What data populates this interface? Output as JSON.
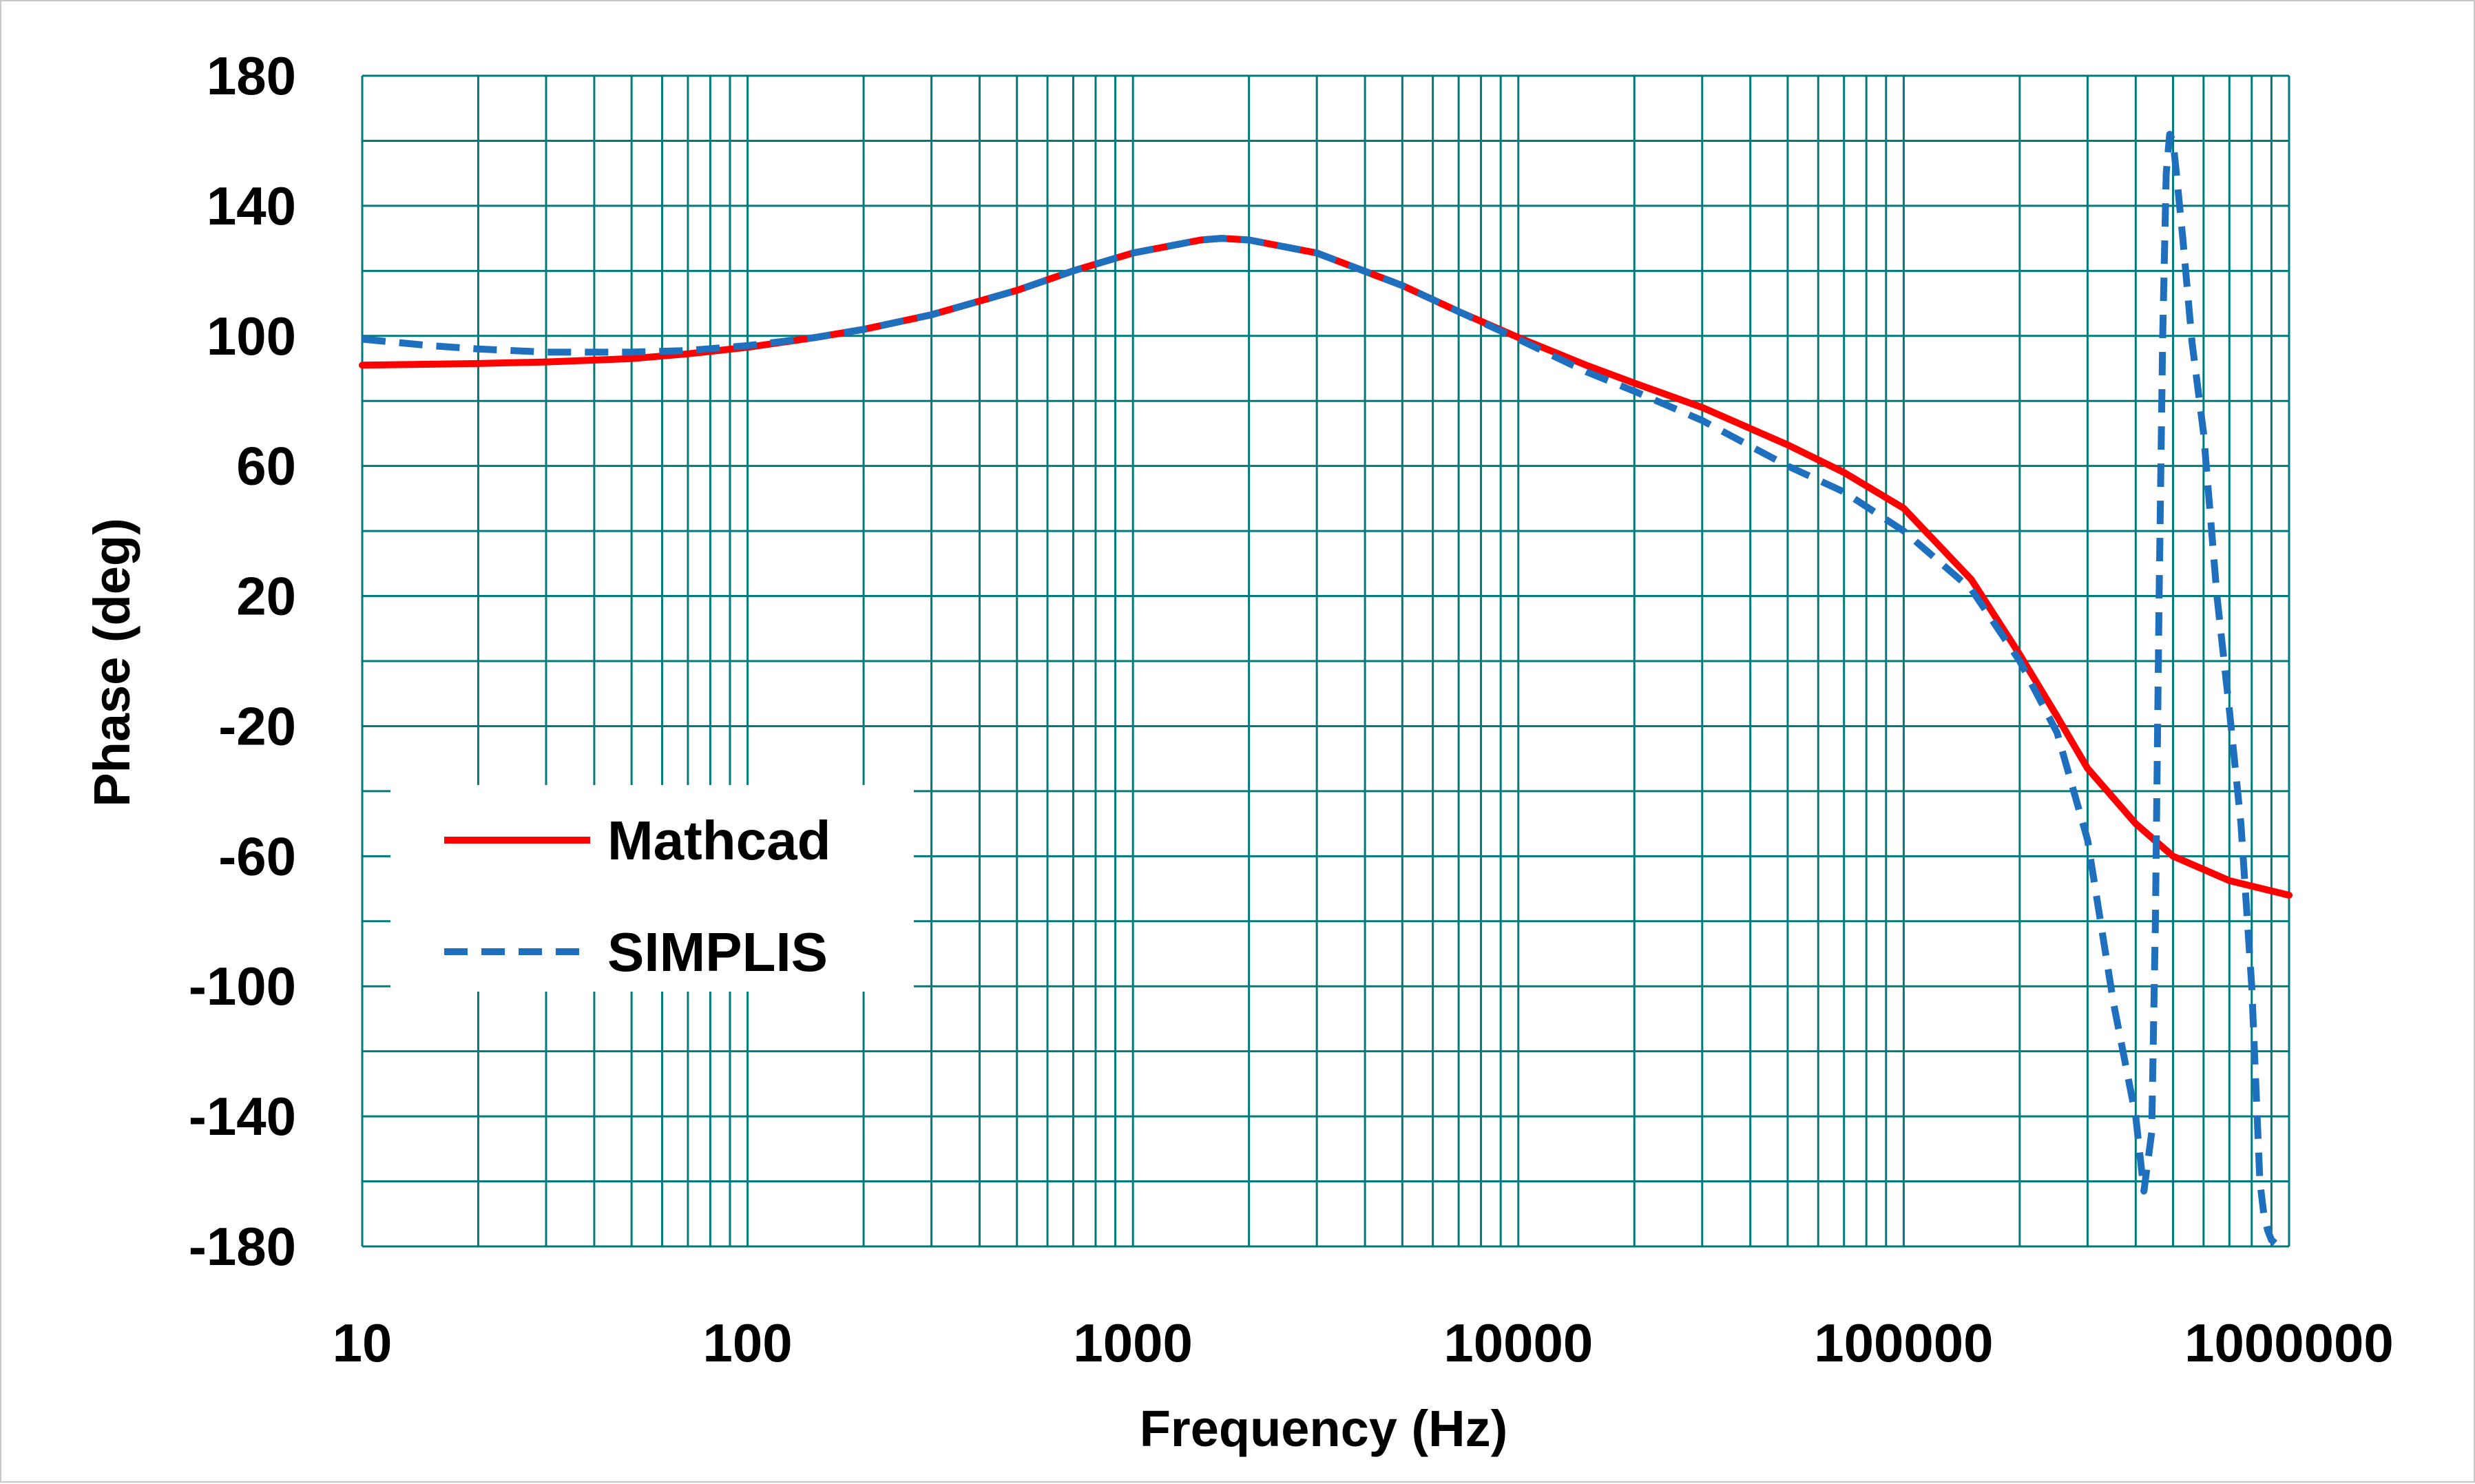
{
  "chart_data": {
    "type": "line",
    "title": "",
    "xlabel": "Frequency (Hz)",
    "ylabel": "Phase (deg)",
    "x_scale": "log",
    "xlim": [
      10,
      1000000
    ],
    "ylim": [
      -180,
      180
    ],
    "x_ticks": [
      10,
      100,
      1000,
      10000,
      100000,
      1000000
    ],
    "x_tick_labels": [
      "10",
      "100",
      "1000",
      "10000",
      "100000",
      "1000000"
    ],
    "y_ticks": [
      180,
      140,
      100,
      60,
      20,
      -20,
      -60,
      -100,
      -140,
      -180
    ],
    "y_tick_labels": [
      "180",
      "140",
      "100",
      "60",
      "20",
      "-20",
      "-60",
      "-100",
      "-140",
      "-180"
    ],
    "grid": true,
    "legend_position": "lower-left",
    "series": [
      {
        "name": "Mathcad",
        "color": "#ff0000",
        "style": "solid",
        "points": [
          [
            10,
            91
          ],
          [
            20,
            91.5
          ],
          [
            30,
            92
          ],
          [
            50,
            93
          ],
          [
            70,
            94.5
          ],
          [
            100,
            96.5
          ],
          [
            150,
            99.5
          ],
          [
            200,
            102
          ],
          [
            300,
            106.5
          ],
          [
            500,
            114
          ],
          [
            700,
            120
          ],
          [
            1000,
            125.5
          ],
          [
            1500,
            129.5
          ],
          [
            1700,
            130
          ],
          [
            2000,
            129.5
          ],
          [
            3000,
            125.5
          ],
          [
            5000,
            115.5
          ],
          [
            7000,
            107.5
          ],
          [
            10000,
            99.5
          ],
          [
            15000,
            91
          ],
          [
            20000,
            85.5
          ],
          [
            30000,
            78
          ],
          [
            50000,
            66.5
          ],
          [
            70000,
            58
          ],
          [
            100000,
            47
          ],
          [
            150000,
            25
          ],
          [
            200000,
            2
          ],
          [
            250000,
            -17
          ],
          [
            300000,
            -33
          ],
          [
            400000,
            -50
          ],
          [
            500000,
            -60
          ],
          [
            700000,
            -67.5
          ],
          [
            1000000,
            -72
          ]
        ]
      },
      {
        "name": "SIMPLIS",
        "color": "#1f6fbf",
        "style": "dashed",
        "points": [
          [
            10,
            99
          ],
          [
            15,
            97
          ],
          [
            20,
            96
          ],
          [
            30,
            95
          ],
          [
            50,
            95
          ],
          [
            70,
            95.5
          ],
          [
            100,
            97
          ],
          [
            150,
            99.5
          ],
          [
            200,
            102
          ],
          [
            300,
            106.5
          ],
          [
            500,
            114
          ],
          [
            700,
            120
          ],
          [
            1000,
            125.5
          ],
          [
            1500,
            129.5
          ],
          [
            1700,
            130
          ],
          [
            2000,
            129.5
          ],
          [
            3000,
            125.5
          ],
          [
            5000,
            115.5
          ],
          [
            7000,
            107.5
          ],
          [
            10000,
            99
          ],
          [
            15000,
            89
          ],
          [
            20000,
            83
          ],
          [
            30000,
            74
          ],
          [
            50000,
            60
          ],
          [
            70000,
            52
          ],
          [
            100000,
            40
          ],
          [
            150000,
            22
          ],
          [
            200000,
            0
          ],
          [
            250000,
            -22
          ],
          [
            300000,
            -55
          ],
          [
            350000,
            -105
          ],
          [
            400000,
            -140
          ],
          [
            420000,
            -163
          ],
          [
            440000,
            -145
          ],
          [
            450000,
            -80
          ],
          [
            460000,
            20
          ],
          [
            470000,
            100
          ],
          [
            480000,
            150
          ],
          [
            490000,
            162
          ],
          [
            500000,
            160
          ],
          [
            510000,
            150
          ],
          [
            530000,
            130
          ],
          [
            560000,
            98
          ],
          [
            600000,
            70
          ],
          [
            650000,
            20
          ],
          [
            700000,
            -15
          ],
          [
            750000,
            -50
          ],
          [
            800000,
            -100
          ],
          [
            840000,
            -160
          ],
          [
            860000,
            -170
          ],
          [
            880000,
            -175
          ],
          [
            900000,
            -178
          ],
          [
            920000,
            -179
          ]
        ]
      }
    ]
  }
}
